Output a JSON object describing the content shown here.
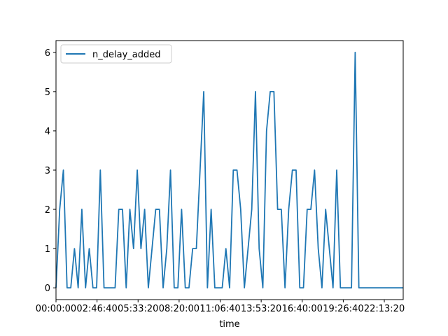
{
  "chart_data": {
    "type": "line",
    "title": "",
    "xlabel": "time",
    "ylabel": "",
    "xlim": [
      0,
      84600
    ],
    "ylim": [
      -0.3,
      6.3
    ],
    "grid": false,
    "legend_position": "top-left",
    "series_color": "#1f77b4",
    "x_ticks": [
      {
        "value": 0,
        "label": "00:00:00"
      },
      {
        "value": 10000,
        "label": "02:46:40"
      },
      {
        "value": 20000,
        "label": "05:33:20"
      },
      {
        "value": 30000,
        "label": "08:20:00"
      },
      {
        "value": 40000,
        "label": "11:06:40"
      },
      {
        "value": 50000,
        "label": "13:53:20"
      },
      {
        "value": 60000,
        "label": "16:40:00"
      },
      {
        "value": 70000,
        "label": "19:26:40"
      },
      {
        "value": 80000,
        "label": "22:13:20"
      }
    ],
    "y_ticks": [
      {
        "value": 0,
        "label": "0"
      },
      {
        "value": 1,
        "label": "1"
      },
      {
        "value": 2,
        "label": "2"
      },
      {
        "value": 3,
        "label": "3"
      },
      {
        "value": 4,
        "label": "4"
      },
      {
        "value": 5,
        "label": "5"
      },
      {
        "value": 6,
        "label": "6"
      }
    ],
    "series": [
      {
        "name": "n_delay_added",
        "x": [
          0,
          900,
          1800,
          2700,
          3600,
          4500,
          5400,
          6300,
          7200,
          8100,
          9000,
          9900,
          10800,
          11700,
          12600,
          13500,
          14400,
          15300,
          16200,
          17100,
          18000,
          18900,
          19800,
          20700,
          21600,
          22500,
          23400,
          24300,
          25200,
          26100,
          27000,
          27900,
          28800,
          29700,
          30600,
          31500,
          32400,
          33300,
          34200,
          35100,
          36000,
          36900,
          37800,
          38700,
          39600,
          40500,
          41400,
          42300,
          43200,
          44100,
          45000,
          45900,
          46800,
          47700,
          48600,
          49500,
          50400,
          51300,
          52200,
          53100,
          54000,
          54900,
          55800,
          56700,
          57600,
          58500,
          59400,
          60300,
          61200,
          62100,
          63000,
          63900,
          64800,
          65700,
          66600,
          67500,
          68400,
          69300,
          70200,
          71100,
          72000,
          72900,
          73800,
          74700,
          75600,
          76500,
          77400,
          78300,
          79200,
          80100,
          81000,
          81900,
          82800,
          83700,
          84600
        ],
        "values": [
          0,
          2,
          3,
          0,
          0,
          1,
          0,
          2,
          0,
          1,
          0,
          0,
          3,
          0,
          0,
          0,
          0,
          2,
          2,
          0,
          2,
          1,
          3,
          1,
          2,
          0,
          1,
          2,
          2,
          0,
          1,
          3,
          0,
          0,
          2,
          0,
          0,
          1,
          1,
          3,
          5,
          0,
          2,
          0,
          0,
          0,
          1,
          0,
          3,
          3,
          2,
          0,
          1,
          2,
          5,
          1,
          0,
          4,
          5,
          5,
          2,
          2,
          0,
          2,
          3,
          3,
          0,
          0,
          2,
          2,
          3,
          1,
          0,
          2,
          1,
          0,
          3,
          0,
          0,
          0,
          0,
          6,
          0,
          0,
          0,
          0,
          0,
          0,
          0,
          0,
          0,
          0,
          0,
          0,
          0
        ]
      }
    ]
  }
}
